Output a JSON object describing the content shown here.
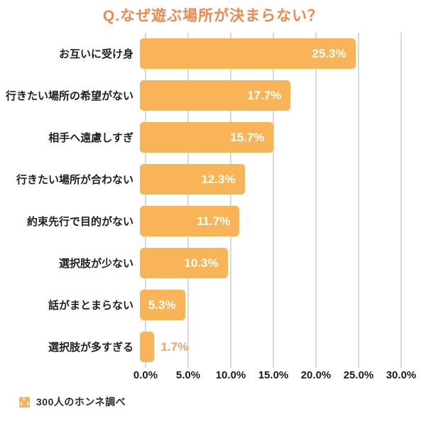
{
  "title": "Q.なぜ遊ぶ場所が決まらない？",
  "colors": {
    "bar": "#F9B458",
    "title": "#F0884E",
    "value_label_inside": "#FFFFFF",
    "value_label_outside": "#F7A261",
    "gridline": "#D9D9D9",
    "text": "#1F1F1F"
  },
  "chart_data": {
    "type": "bar",
    "orientation": "horizontal",
    "title": "Q.なぜ遊ぶ場所が決まらない？",
    "categories": [
      "お互いに受け身",
      "行きたい場所の希望がない",
      "相手へ遠慮しすぎ",
      "行きたい場所が合わない",
      "約束先行で目的がない",
      "選択肢が少ない",
      "話がまとまらない",
      "選択肢が多すぎる"
    ],
    "values": [
      25.3,
      17.7,
      15.7,
      12.3,
      11.7,
      10.3,
      5.3,
      1.7
    ],
    "value_labels": [
      "25.3%",
      "17.7%",
      "15.7%",
      "12.3%",
      "11.7%",
      "10.3%",
      "5.3%",
      "1.7%"
    ],
    "xlabel": "",
    "ylabel": "",
    "xlim": [
      0,
      30
    ],
    "x_ticks": [
      "0.0%",
      "5.0%",
      "10.0%",
      "15.0%",
      "20.0%",
      "25.0%",
      "30.0%"
    ],
    "grid": "vertical",
    "legend": false
  },
  "footer": {
    "icon": "brand-icon",
    "source": "300人のホンネ調べ"
  }
}
